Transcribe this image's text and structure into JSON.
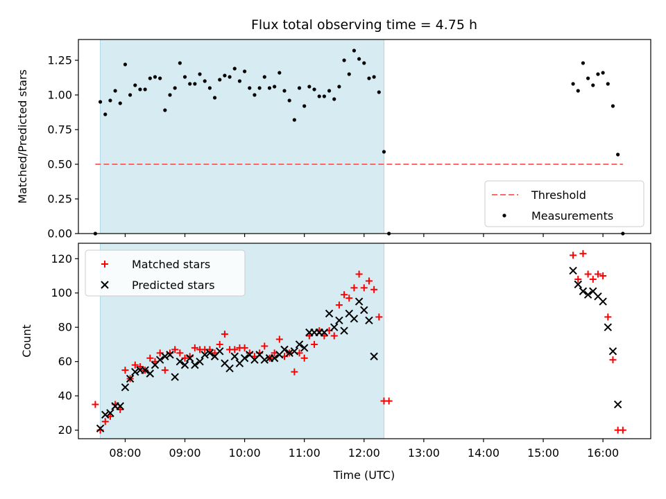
{
  "figure_title": "Flux total observing time = 4.75 h",
  "colors": {
    "shade": "#add8e6",
    "threshold": "#ff6666",
    "measurement": "#000000",
    "matched": "#ff0000",
    "predicted": "#000000"
  },
  "chart_data": [
    {
      "type": "scatter",
      "ylabel": "Matched/Predicted stars",
      "xlim": [
        "07:13",
        "16:48"
      ],
      "ylim": [
        0,
        1.4
      ],
      "yticks": [
        "0.00",
        "0.25",
        "0.50",
        "0.75",
        "1.00",
        "1.25"
      ],
      "shaded_interval": [
        "07:35",
        "12:20"
      ],
      "grid": false,
      "legend": {
        "placement": "lower right",
        "entries": [
          "Threshold",
          "Measurements"
        ]
      },
      "threshold": {
        "name": "Threshold",
        "y": 0.5,
        "x_range": [
          "07:30",
          "16:20"
        ],
        "style": "dashed"
      },
      "series": [
        {
          "name": "Measurements",
          "marker": "dot",
          "points": [
            [
              "07:30",
              0.0
            ],
            [
              "07:35",
              0.95
            ],
            [
              "07:40",
              0.86
            ],
            [
              "07:45",
              0.96
            ],
            [
              "07:50",
              1.03
            ],
            [
              "07:55",
              0.94
            ],
            [
              "08:00",
              1.22
            ],
            [
              "08:05",
              1.0
            ],
            [
              "08:10",
              1.07
            ],
            [
              "08:15",
              1.04
            ],
            [
              "08:20",
              1.04
            ],
            [
              "08:25",
              1.12
            ],
            [
              "08:30",
              1.13
            ],
            [
              "08:35",
              1.12
            ],
            [
              "08:40",
              0.89
            ],
            [
              "08:45",
              1.0
            ],
            [
              "08:50",
              1.05
            ],
            [
              "08:55",
              1.23
            ],
            [
              "09:00",
              1.13
            ],
            [
              "09:05",
              1.08
            ],
            [
              "09:10",
              1.08
            ],
            [
              "09:15",
              1.15
            ],
            [
              "09:20",
              1.1
            ],
            [
              "09:25",
              1.05
            ],
            [
              "09:30",
              0.98
            ],
            [
              "09:35",
              1.11
            ],
            [
              "09:40",
              1.14
            ],
            [
              "09:45",
              1.13
            ],
            [
              "09:50",
              1.19
            ],
            [
              "09:55",
              1.1
            ],
            [
              "10:00",
              1.17
            ],
            [
              "10:05",
              1.05
            ],
            [
              "10:10",
              1.0
            ],
            [
              "10:15",
              1.05
            ],
            [
              "10:20",
              1.13
            ],
            [
              "10:25",
              1.05
            ],
            [
              "10:30",
              1.06
            ],
            [
              "10:35",
              1.16
            ],
            [
              "10:40",
              1.03
            ],
            [
              "10:45",
              0.96
            ],
            [
              "10:50",
              0.82
            ],
            [
              "10:55",
              1.05
            ],
            [
              "11:00",
              0.92
            ],
            [
              "11:05",
              1.06
            ],
            [
              "11:10",
              1.04
            ],
            [
              "11:15",
              0.99
            ],
            [
              "11:20",
              0.99
            ],
            [
              "11:25",
              1.03
            ],
            [
              "11:30",
              0.97
            ],
            [
              "11:35",
              1.06
            ],
            [
              "11:40",
              1.25
            ],
            [
              "11:45",
              1.15
            ],
            [
              "11:50",
              1.32
            ],
            [
              "11:55",
              1.26
            ],
            [
              "12:00",
              1.23
            ],
            [
              "12:05",
              1.12
            ],
            [
              "12:10",
              1.13
            ],
            [
              "12:15",
              1.02
            ],
            [
              "12:20",
              0.59
            ],
            [
              "12:25",
              0.0
            ],
            [
              "15:30",
              1.08
            ],
            [
              "15:35",
              1.03
            ],
            [
              "15:40",
              1.23
            ],
            [
              "15:45",
              1.12
            ],
            [
              "15:50",
              1.07
            ],
            [
              "15:55",
              1.15
            ],
            [
              "16:00",
              1.16
            ],
            [
              "16:05",
              1.08
            ],
            [
              "16:10",
              0.92
            ],
            [
              "16:15",
              0.57
            ],
            [
              "16:20",
              0.0
            ]
          ]
        }
      ]
    },
    {
      "type": "scatter",
      "xlabel": "Time (UTC)",
      "ylabel": "Count",
      "xlim": [
        "07:13",
        "16:48"
      ],
      "ylim": [
        15,
        129
      ],
      "yticks": [
        "20",
        "40",
        "60",
        "80",
        "100",
        "120"
      ],
      "xticks": [
        "08:00",
        "09:00",
        "10:00",
        "11:00",
        "12:00",
        "13:00",
        "14:00",
        "15:00",
        "16:00"
      ],
      "shaded_interval": [
        "07:35",
        "12:20"
      ],
      "grid": false,
      "legend": {
        "placement": "upper left",
        "entries": [
          "Matched stars",
          "Predicted stars"
        ]
      },
      "series": [
        {
          "name": "Matched stars",
          "marker": "plus",
          "points": [
            [
              "07:30",
              35
            ],
            [
              "07:35",
              20
            ],
            [
              "07:40",
              25
            ],
            [
              "07:45",
              28
            ],
            [
              "07:50",
              35
            ],
            [
              "07:55",
              32
            ],
            [
              "08:00",
              55
            ],
            [
              "08:05",
              50
            ],
            [
              "08:10",
              58
            ],
            [
              "08:15",
              57
            ],
            [
              "08:20",
              55
            ],
            [
              "08:25",
              62
            ],
            [
              "08:30",
              60
            ],
            [
              "08:35",
              65
            ],
            [
              "08:40",
              55
            ],
            [
              "08:45",
              65
            ],
            [
              "08:50",
              67
            ],
            [
              "08:55",
              65
            ],
            [
              "09:00",
              62
            ],
            [
              "09:05",
              63
            ],
            [
              "09:10",
              68
            ],
            [
              "09:15",
              67
            ],
            [
              "09:20",
              67
            ],
            [
              "09:25",
              67
            ],
            [
              "09:30",
              65
            ],
            [
              "09:35",
              70
            ],
            [
              "09:40",
              76
            ],
            [
              "09:45",
              67
            ],
            [
              "09:50",
              67
            ],
            [
              "09:55",
              68
            ],
            [
              "10:00",
              68
            ],
            [
              "10:05",
              65
            ],
            [
              "10:10",
              63
            ],
            [
              "10:15",
              65
            ],
            [
              "10:20",
              69
            ],
            [
              "10:25",
              62
            ],
            [
              "10:30",
              65
            ],
            [
              "10:35",
              73
            ],
            [
              "10:40",
              63
            ],
            [
              "10:45",
              65
            ],
            [
              "10:50",
              54
            ],
            [
              "10:55",
              65
            ],
            [
              "11:00",
              62
            ],
            [
              "11:05",
              75
            ],
            [
              "11:10",
              70
            ],
            [
              "11:15",
              78
            ],
            [
              "11:20",
              75
            ],
            [
              "11:25",
              78
            ],
            [
              "11:30",
              75
            ],
            [
              "11:35",
              93
            ],
            [
              "11:40",
              99
            ],
            [
              "11:45",
              97
            ],
            [
              "11:50",
              103
            ],
            [
              "11:55",
              111
            ],
            [
              "12:00",
              103
            ],
            [
              "12:05",
              107
            ],
            [
              "12:10",
              102
            ],
            [
              "12:15",
              86
            ],
            [
              "12:20",
              37
            ],
            [
              "12:25",
              37
            ],
            [
              "15:30",
              122
            ],
            [
              "15:35",
              108
            ],
            [
              "15:40",
              123
            ],
            [
              "15:45",
              111
            ],
            [
              "15:50",
              108
            ],
            [
              "15:55",
              111
            ],
            [
              "16:00",
              110
            ],
            [
              "16:05",
              86
            ],
            [
              "16:10",
              61
            ],
            [
              "16:15",
              20
            ],
            [
              "16:20",
              20
            ]
          ]
        },
        {
          "name": "Predicted stars",
          "marker": "x",
          "points": [
            [
              "07:35",
              21
            ],
            [
              "07:40",
              29
            ],
            [
              "07:45",
              30
            ],
            [
              "07:50",
              34
            ],
            [
              "07:55",
              34
            ],
            [
              "08:00",
              45
            ],
            [
              "08:05",
              50
            ],
            [
              "08:10",
              54
            ],
            [
              "08:15",
              55
            ],
            [
              "08:20",
              55
            ],
            [
              "08:25",
              53
            ],
            [
              "08:30",
              58
            ],
            [
              "08:35",
              61
            ],
            [
              "08:40",
              63
            ],
            [
              "08:45",
              64
            ],
            [
              "08:50",
              51
            ],
            [
              "08:55",
              60
            ],
            [
              "09:00",
              58
            ],
            [
              "09:05",
              62
            ],
            [
              "09:10",
              58
            ],
            [
              "09:15",
              60
            ],
            [
              "09:20",
              64
            ],
            [
              "09:25",
              65
            ],
            [
              "09:30",
              63
            ],
            [
              "09:35",
              66
            ],
            [
              "09:40",
              59
            ],
            [
              "09:45",
              56
            ],
            [
              "09:50",
              63
            ],
            [
              "09:55",
              59
            ],
            [
              "10:00",
              62
            ],
            [
              "10:05",
              64
            ],
            [
              "10:10",
              61
            ],
            [
              "10:15",
              64
            ],
            [
              "10:20",
              61
            ],
            [
              "10:25",
              62
            ],
            [
              "10:30",
              62
            ],
            [
              "10:35",
              64
            ],
            [
              "10:40",
              67
            ],
            [
              "10:45",
              65
            ],
            [
              "10:50",
              66
            ],
            [
              "10:55",
              70
            ],
            [
              "11:00",
              68
            ],
            [
              "11:05",
              77
            ],
            [
              "11:10",
              77
            ],
            [
              "11:15",
              77
            ],
            [
              "11:20",
              77
            ],
            [
              "11:25",
              88
            ],
            [
              "11:30",
              80
            ],
            [
              "11:35",
              84
            ],
            [
              "11:40",
              78
            ],
            [
              "11:45",
              88
            ],
            [
              "11:50",
              85
            ],
            [
              "11:55",
              95
            ],
            [
              "12:00",
              90
            ],
            [
              "12:05",
              84
            ],
            [
              "12:10",
              63
            ],
            [
              "15:30",
              113
            ],
            [
              "15:35",
              105
            ],
            [
              "15:40",
              101
            ],
            [
              "15:45",
              99
            ],
            [
              "15:50",
              101
            ],
            [
              "15:55",
              98
            ],
            [
              "16:00",
              95
            ],
            [
              "16:05",
              80
            ],
            [
              "16:10",
              66
            ],
            [
              "16:15",
              35
            ]
          ]
        }
      ]
    }
  ]
}
